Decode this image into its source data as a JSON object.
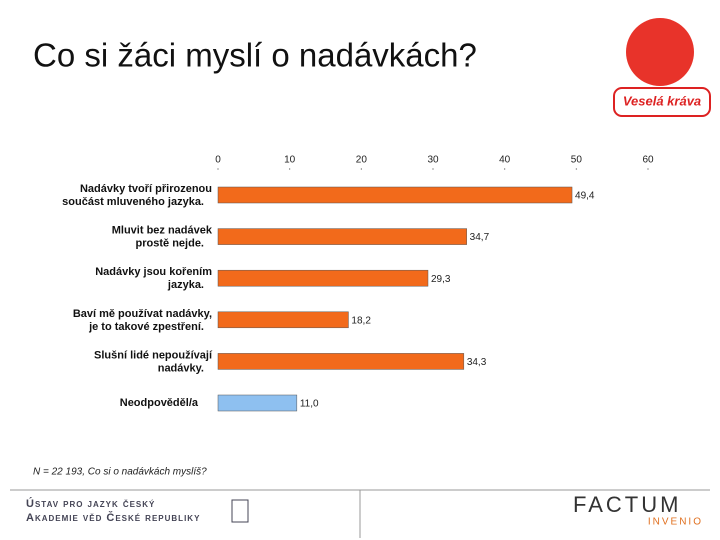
{
  "slide_title": "Co si žáci myslí o nadávkách?",
  "logo": {
    "text": "Veselá kráva"
  },
  "chart_data": {
    "type": "hbar",
    "categories": [
      "Nadávky tvoří přirozenou\nsoučást mluveného jazyka.",
      "Mluvit bez nadávek\nprostě nejde.",
      "Nadávky jsou kořením\njazyka.",
      "Baví mě používat nadávky,\nje to takové zpestření.",
      "Slušní lidé nepoužívají\nnadávky.",
      "Neodpověděl/a"
    ],
    "values": [
      49.4,
      34.7,
      29.3,
      18.2,
      34.3,
      11.0
    ],
    "value_labels": [
      "49,4",
      "34,7",
      "29,3",
      "18,2",
      "34,3",
      "11,0"
    ],
    "colors": [
      "#f26a1b",
      "#f26a1b",
      "#f26a1b",
      "#f26a1b",
      "#f26a1b",
      "#8ec0f0"
    ],
    "xlim": [
      0,
      60
    ],
    "xticks": [
      0,
      10,
      20,
      30,
      40,
      50,
      60
    ],
    "note": "N = 22 193, Co si o nadávkách myslíš?"
  },
  "footer": {
    "institute_line1": "Ústav pro jazyk český",
    "institute_line2": "Akademie věd České republiky",
    "brand": "FACTUM",
    "brand_sub": "INVENIO"
  }
}
